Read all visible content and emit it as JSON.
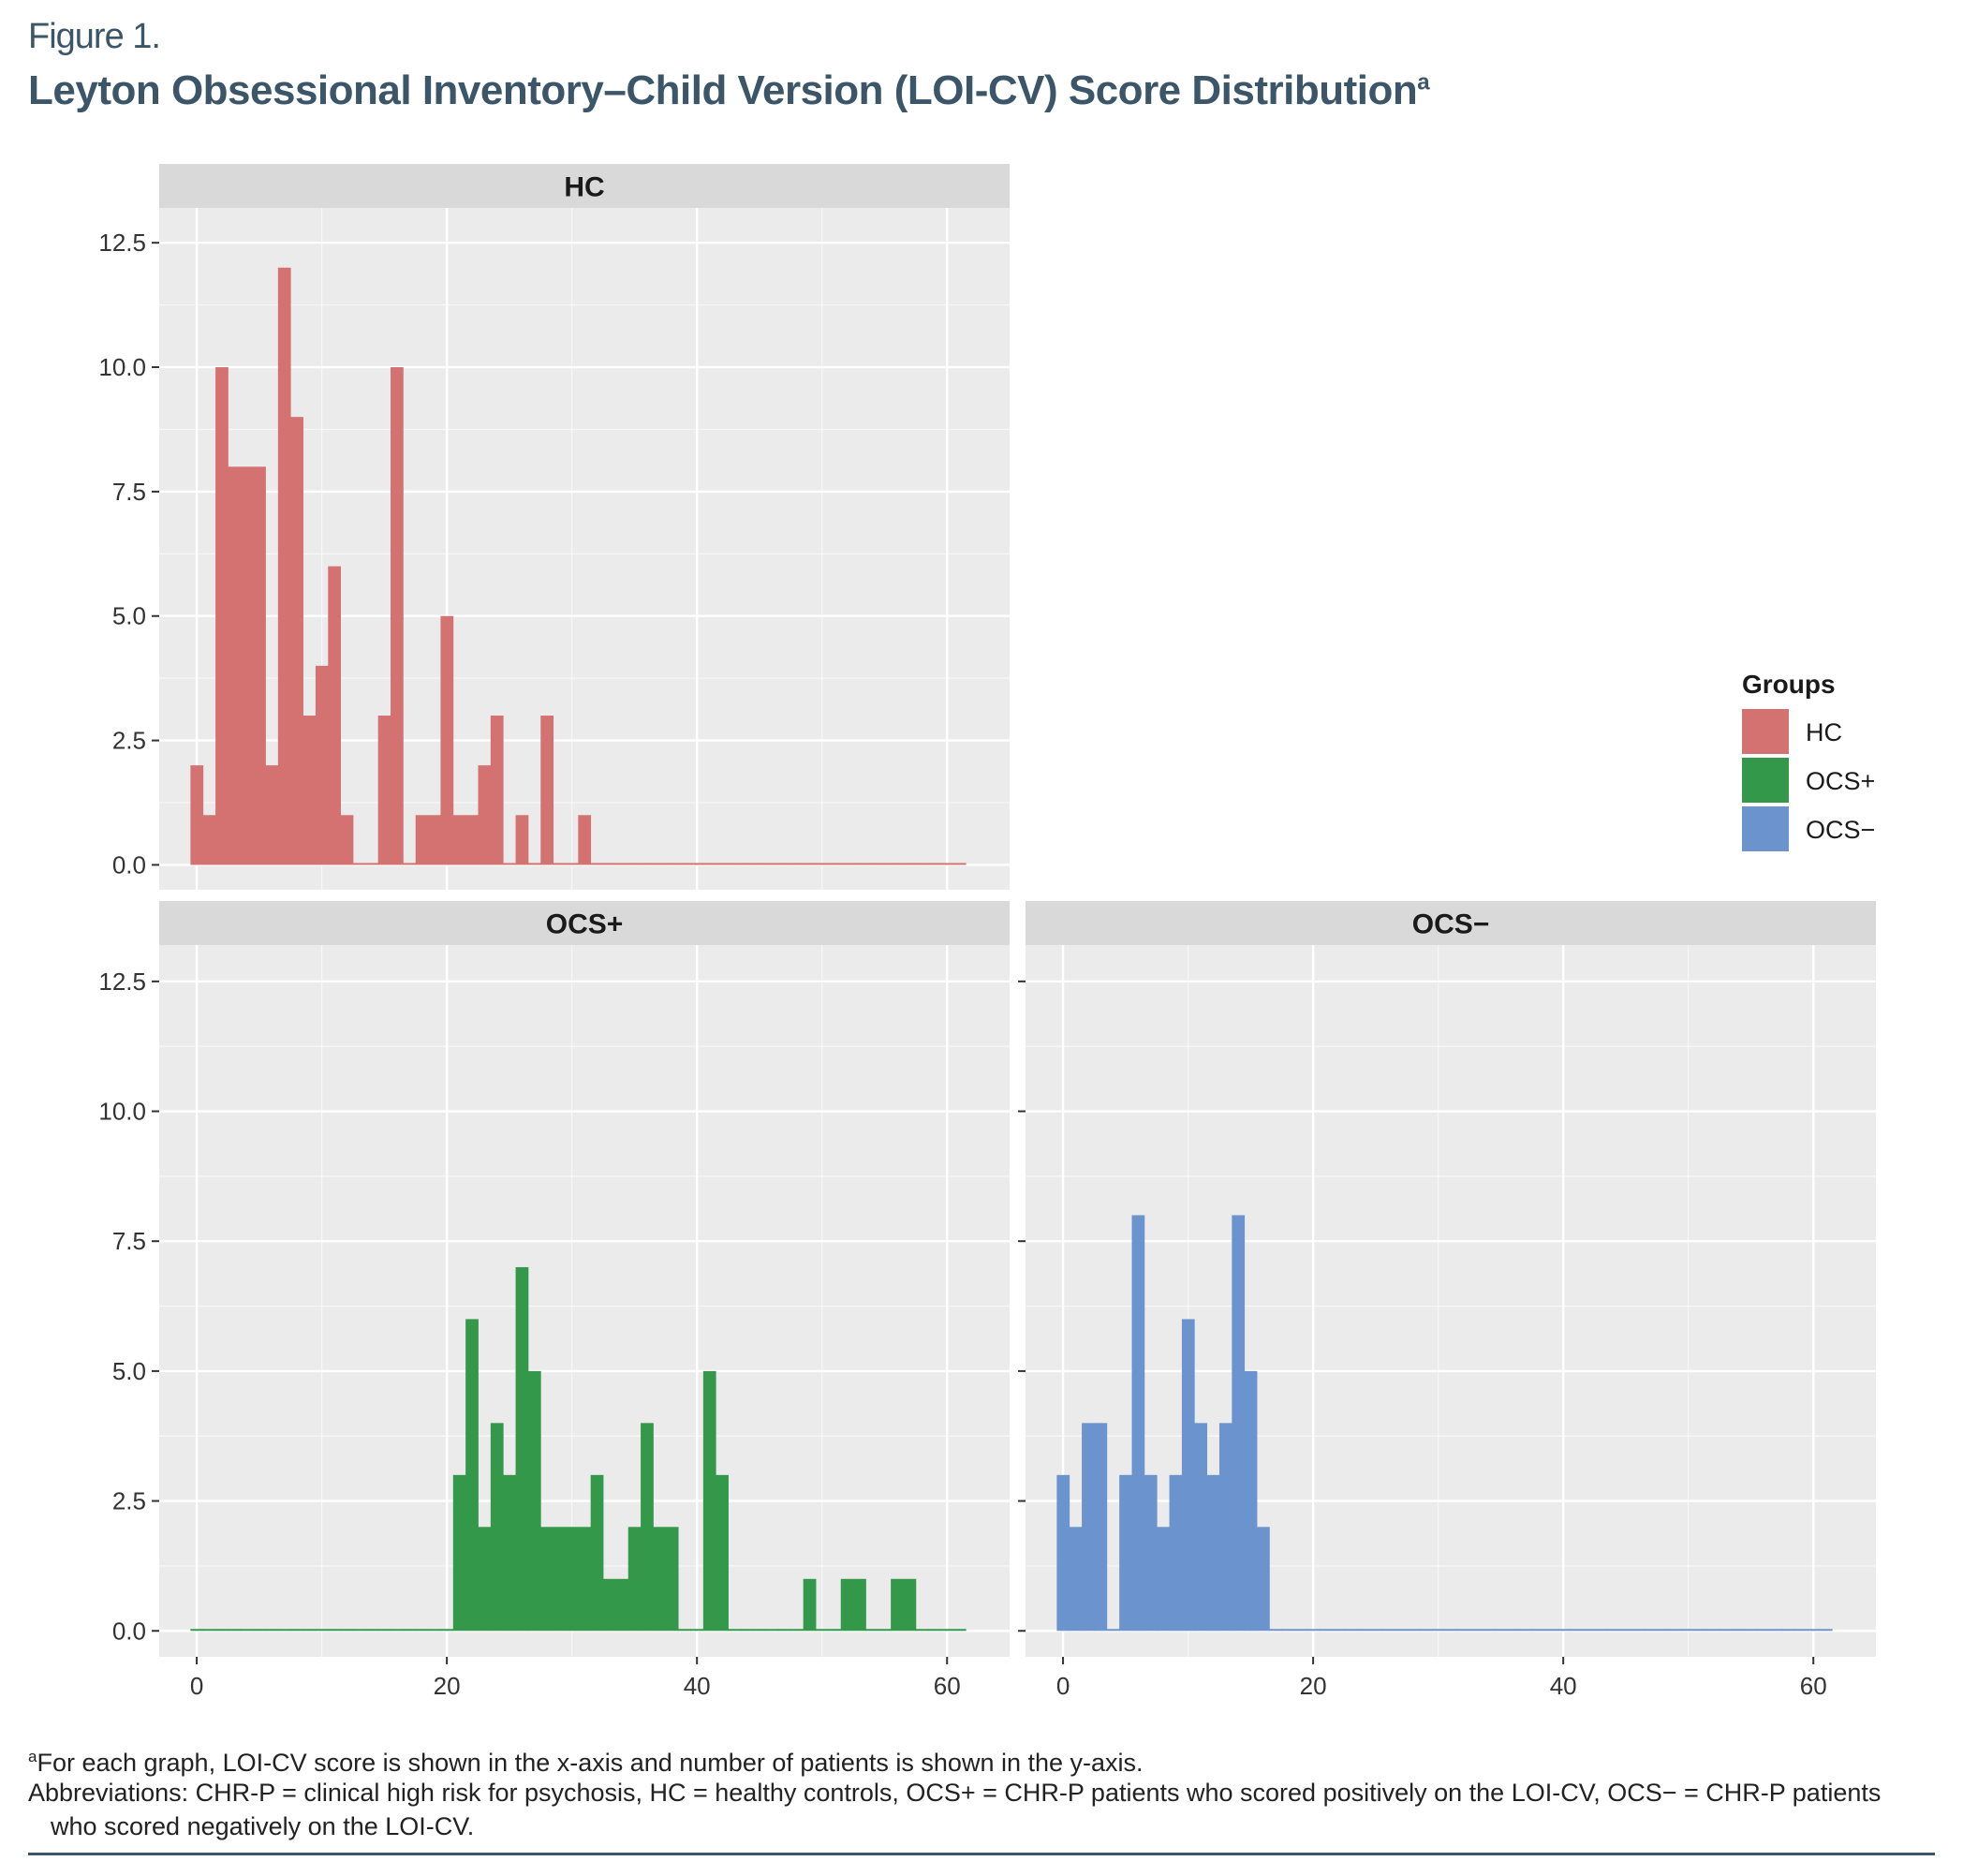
{
  "figure": {
    "label": "Figure 1.",
    "title": "Leyton Obsessional Inventory–Child Version (LOI-CV) Score Distribution",
    "title_marker": "a"
  },
  "footnotes": {
    "note_marker": "a",
    "note": "For each graph, LOI-CV score is shown in the x-axis and number of patients is shown in the y-axis.",
    "abbreviations_line1": "Abbreviations: CHR-P = clinical high risk for psychosis, HC = healthy controls, OCS+ = CHR-P patients who scored positively on the LOI-CV, OCS− = CHR-P patients",
    "abbreviations_line2": "who scored negatively on the LOI-CV."
  },
  "colors": {
    "HC": "#d47272",
    "OCS+": "#34984b",
    "OCS−": "#6b93cd",
    "panel_bg": "#ebebeb",
    "strip_bg": "#d9d9d9",
    "grid": "#ffffff"
  },
  "chart_data": {
    "type": "bar",
    "subtype": "faceted-histogram",
    "xlim": [
      -3,
      65
    ],
    "ylim": [
      -0.5,
      13.2
    ],
    "x_ticks": [
      0,
      20,
      40,
      60
    ],
    "y_ticks": [
      "0.0",
      "2.5",
      "5.0",
      "7.5",
      "10.0",
      "12.5"
    ],
    "bin_width": 1,
    "x": [
      0,
      1,
      2,
      3,
      4,
      5,
      6,
      7,
      8,
      9,
      10,
      11,
      12,
      13,
      14,
      15,
      16,
      17,
      18,
      19,
      20,
      21,
      22,
      23,
      24,
      25,
      26,
      27,
      28,
      29,
      30,
      31,
      32,
      33,
      34,
      35,
      36,
      37,
      38,
      39,
      40,
      41,
      42,
      43,
      44,
      45,
      46,
      47,
      48,
      49,
      50,
      51,
      52,
      53,
      54,
      55,
      56,
      57,
      58,
      59,
      60,
      61
    ],
    "legend": {
      "title": "Groups",
      "position": "right",
      "entries": [
        "HC",
        "OCS+",
        "OCS−"
      ]
    },
    "series": [
      {
        "name": "HC",
        "values": [
          2,
          1,
          10,
          8,
          8,
          8,
          2,
          12,
          9,
          3,
          4,
          6,
          1,
          0,
          0,
          3,
          10,
          0,
          1,
          1,
          5,
          1,
          1,
          2,
          3,
          0,
          1,
          0,
          3,
          0,
          0,
          1,
          0,
          0,
          0,
          0,
          0,
          0,
          0,
          0,
          0,
          0,
          0,
          0,
          0,
          0,
          0,
          0,
          0,
          0,
          0,
          0,
          0,
          0,
          0,
          0,
          0,
          0,
          0,
          0,
          0,
          0
        ]
      },
      {
        "name": "OCS+",
        "values": [
          0,
          0,
          0,
          0,
          0,
          0,
          0,
          0,
          0,
          0,
          0,
          0,
          0,
          0,
          0,
          0,
          0,
          0,
          0,
          0,
          0,
          3,
          6,
          2,
          4,
          3,
          7,
          5,
          2,
          2,
          2,
          2,
          3,
          1,
          1,
          2,
          4,
          2,
          2,
          0,
          0,
          5,
          3,
          0,
          0,
          0,
          0,
          0,
          0,
          1,
          0,
          0,
          1,
          1,
          0,
          0,
          1,
          1,
          0,
          0,
          0,
          0
        ]
      },
      {
        "name": "OCS−",
        "values": [
          3,
          2,
          4,
          4,
          0,
          3,
          8,
          3,
          2,
          3,
          6,
          4,
          3,
          4,
          8,
          5,
          2,
          0,
          0,
          0,
          0,
          0,
          0,
          0,
          0,
          0,
          0,
          0,
          0,
          0,
          0,
          0,
          0,
          0,
          0,
          0,
          0,
          0,
          0,
          0,
          0,
          0,
          0,
          0,
          0,
          0,
          0,
          0,
          0,
          0,
          0,
          0,
          0,
          0,
          0,
          0,
          0,
          0,
          0,
          0,
          0,
          0
        ]
      }
    ],
    "facets": [
      {
        "strip": "HC",
        "series": "HC"
      },
      {
        "strip": "OCS+",
        "series": "OCS+"
      },
      {
        "strip": "OCS−",
        "series": "OCS−"
      }
    ]
  }
}
